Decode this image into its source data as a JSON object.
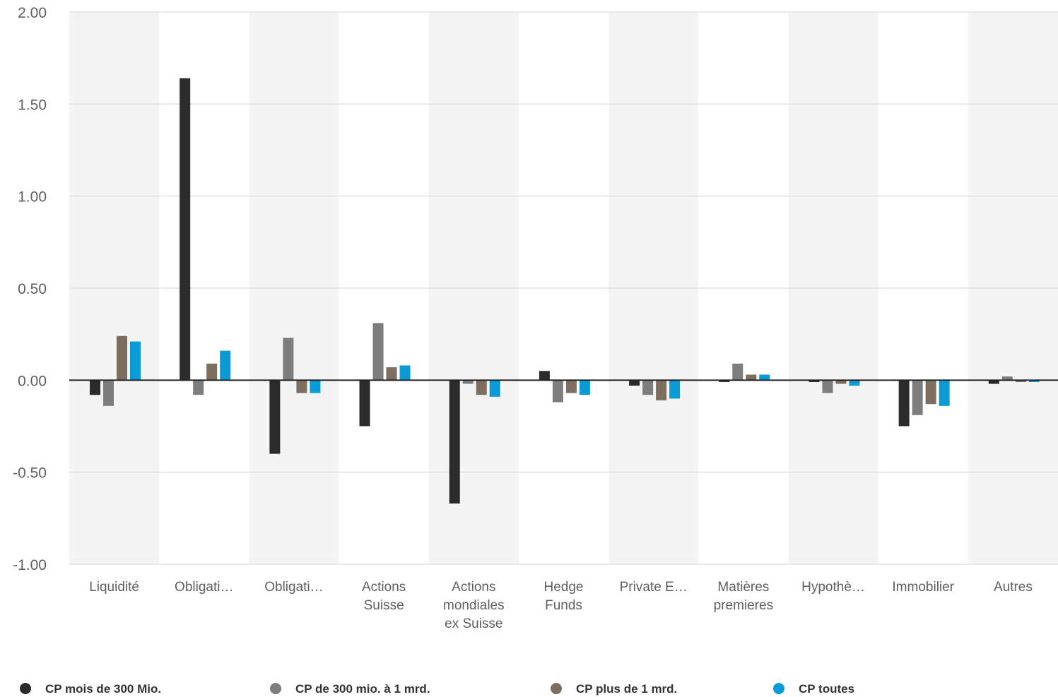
{
  "chart_data": {
    "type": "bar",
    "title": "",
    "xlabel": "",
    "ylabel": "",
    "ylim": [
      -1.0,
      2.0
    ],
    "yticks": [
      "2.00",
      "1.50",
      "1.00",
      "0.50",
      "0.00",
      "-0.50",
      "-1.00"
    ],
    "ytick_values": [
      2.0,
      1.5,
      1.0,
      0.5,
      0.0,
      -0.5,
      -1.0
    ],
    "grid": true,
    "legend_position": "bottom",
    "categories": [
      [
        "Liquidité"
      ],
      [
        "Obligati…"
      ],
      [
        "Obligati…"
      ],
      [
        "Actions",
        "Suisse"
      ],
      [
        "Actions",
        "mondiales",
        "ex Suisse"
      ],
      [
        "Hedge",
        "Funds"
      ],
      [
        "Private E…"
      ],
      [
        "Matières",
        "premieres"
      ],
      [
        "Hypothè…"
      ],
      [
        "Immobilier"
      ],
      [
        "Autres"
      ]
    ],
    "series": [
      {
        "name": "CP mois de 300 Mio.",
        "color": "#2b2b2b",
        "values": [
          -0.08,
          1.64,
          -0.4,
          -0.25,
          -0.67,
          0.05,
          -0.03,
          -0.01,
          -0.01,
          -0.25,
          -0.02
        ]
      },
      {
        "name": "CP de 300 mio. à 1 mrd.",
        "color": "#7d7d7d",
        "values": [
          -0.14,
          -0.08,
          0.23,
          0.31,
          -0.02,
          -0.12,
          -0.08,
          0.09,
          -0.07,
          -0.19,
          0.02
        ]
      },
      {
        "name": "CP plus de 1 mrd.",
        "color": "#7e6e5f",
        "values": [
          0.24,
          0.09,
          -0.07,
          0.07,
          -0.08,
          -0.07,
          -0.11,
          0.03,
          -0.02,
          -0.13,
          -0.01
        ]
      },
      {
        "name": "CP toutes",
        "color": "#0a9ad6",
        "values": [
          0.21,
          0.16,
          -0.07,
          0.08,
          -0.09,
          -0.08,
          -0.1,
          0.03,
          -0.03,
          -0.14,
          -0.01
        ]
      }
    ],
    "band_color": "#f4f4f4",
    "grid_color": "#e2e2e2",
    "baseline_color": "#222222"
  }
}
